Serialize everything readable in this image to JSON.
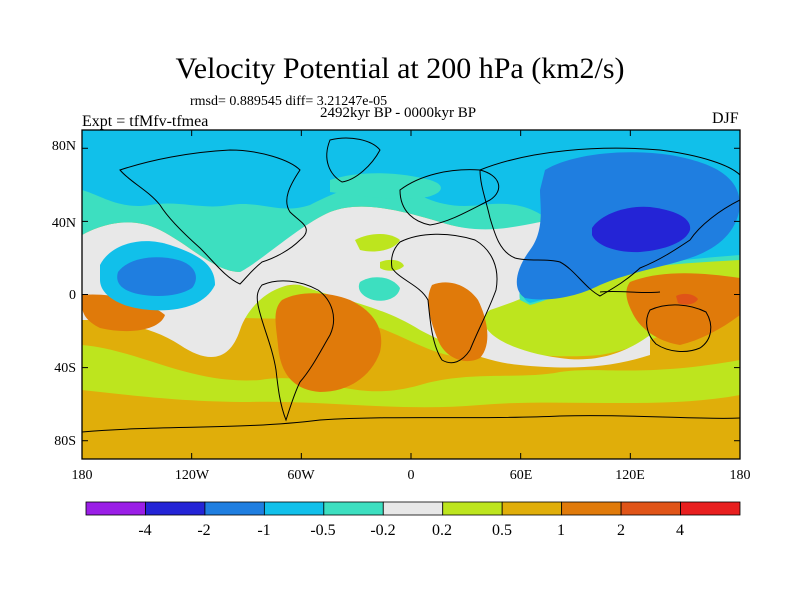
{
  "figure": {
    "title": "Velocity Potential at 200 hPa (km2/s)",
    "stats": "rmsd= 0.889545 diff= 3.21247e-05",
    "period": "2492kyr BP - 0000kyr BP",
    "experiment": "Expt = tfMfv-tfmea",
    "season": "DJF"
  },
  "chart_data": {
    "type": "map",
    "projection": "cylindrical-equidistant",
    "lat_range": [
      -90,
      90
    ],
    "lon_range": [
      -180,
      180
    ],
    "lat_tick_labels": [
      "80N",
      "40N",
      "0",
      "40S",
      "80S"
    ],
    "lat_tick_values": [
      80,
      40,
      0,
      -40,
      -80
    ],
    "lon_tick_labels": [
      "180",
      "120W",
      "60W",
      "0",
      "60E",
      "120E",
      "180"
    ],
    "lon_tick_values": [
      -180,
      -120,
      -60,
      0,
      60,
      120,
      180
    ],
    "colorbar": {
      "levels": [
        "-4",
        "-2",
        "-1",
        "-0.5",
        "-0.2",
        "0.2",
        "0.5",
        "1",
        "2",
        "4"
      ],
      "colors": [
        "#9a1ee6",
        "#2424d6",
        "#1f7ee0",
        "#11c0ea",
        "#3ddfc0",
        "#e8e8e8",
        "#bde51e",
        "#e0ae0a",
        "#e07a0a",
        "#e05418",
        "#e81f1f"
      ]
    },
    "features": [
      {
        "name": "northern-hemisphere-blue-band",
        "level_class": "-1 to -0.5"
      },
      {
        "name": "east-asia-minimum",
        "level_class": "-4 to -2",
        "lon": 130,
        "lat": 35
      },
      {
        "name": "tropical-pacific-minimum",
        "level_class": "-2 to -1",
        "lon": -135,
        "lat": 10
      },
      {
        "name": "south-america-maximum",
        "level_class": "1 to 2",
        "lon": -50,
        "lat": -20
      },
      {
        "name": "southern-africa-maximum",
        "level_class": "1 to 2",
        "lon": 25,
        "lat": -20
      },
      {
        "name": "new-guinea-maximum",
        "level_class": "2 to 4",
        "lon": 150,
        "lat": 0
      },
      {
        "name": "southern-hemisphere-field",
        "level_class": "0.5 to 1"
      }
    ]
  }
}
